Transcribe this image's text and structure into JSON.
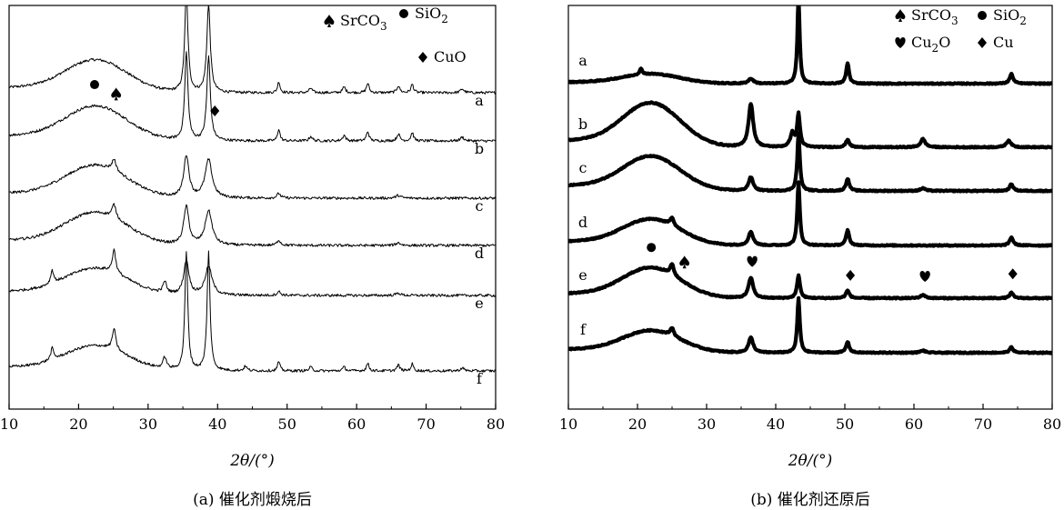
{
  "chart_data": [
    {
      "type": "line",
      "panel": "(a)",
      "caption": "(a) 催化剂煅烧后",
      "xlabel": "2θ/(°)",
      "ylabel": "",
      "xlim": [
        10,
        80
      ],
      "x_ticks": [
        "10",
        "20",
        "30",
        "40",
        "50",
        "60",
        "70",
        "80"
      ],
      "y_ticks": false,
      "grid": false,
      "legend_placement": "top-right",
      "legend": [
        {
          "marker": "spade",
          "label": "SrCO₃"
        },
        {
          "marker": "circle",
          "label": "SiO₂"
        },
        {
          "marker": "diamond",
          "label": "CuO"
        }
      ],
      "series": [
        {
          "name": "a",
          "baseline": 0.85,
          "hump": {
            "center": 22.5,
            "width": 4.5,
            "height": 0.85
          },
          "peaks": [
            [
              35.5,
              2.6,
              0.28
            ],
            [
              38.7,
              2.3,
              0.3
            ],
            [
              48.8,
              0.3,
              0.2
            ],
            [
              53.4,
              0.12,
              0.25
            ],
            [
              58.2,
              0.15,
              0.25
            ],
            [
              61.6,
              0.25,
              0.22
            ],
            [
              66.0,
              0.18,
              0.25
            ],
            [
              68.0,
              0.22,
              0.22
            ],
            [
              75.2,
              0.1,
              0.3
            ]
          ]
        },
        {
          "name": "b",
          "baseline": 0.85,
          "hump": {
            "center": 22.5,
            "width": 4.5,
            "height": 0.9
          },
          "peaks": [
            [
              35.5,
              2.3,
              0.28
            ],
            [
              38.7,
              2.2,
              0.3
            ],
            [
              48.8,
              0.32,
              0.2
            ],
            [
              53.4,
              0.12,
              0.25
            ],
            [
              58.2,
              0.15,
              0.25
            ],
            [
              61.6,
              0.25,
              0.22
            ],
            [
              66.0,
              0.18,
              0.25
            ],
            [
              68.0,
              0.22,
              0.22
            ],
            [
              75.2,
              0.1,
              0.3
            ]
          ]
        },
        {
          "name": "c",
          "baseline": 0.85,
          "hump": {
            "center": 22.5,
            "width": 4.5,
            "height": 0.85
          },
          "peaks": [
            [
              25.1,
              0.3,
              0.35
            ],
            [
              35.5,
              1.1,
              0.45
            ],
            [
              38.7,
              1.0,
              0.6
            ],
            [
              48.8,
              0.12,
              0.3
            ],
            [
              66.0,
              0.07,
              0.4
            ]
          ]
        },
        {
          "name": "d",
          "baseline": 0.85,
          "hump": {
            "center": 22.5,
            "width": 4.5,
            "height": 0.85
          },
          "peaks": [
            [
              25.1,
              0.35,
              0.35
            ],
            [
              35.5,
              1.0,
              0.45
            ],
            [
              38.7,
              0.9,
              0.6
            ],
            [
              48.8,
              0.14,
              0.3
            ],
            [
              66.0,
              0.07,
              0.4
            ]
          ]
        },
        {
          "name": "e",
          "baseline": 0.85,
          "hump": {
            "center": 22.5,
            "width": 4.5,
            "height": 0.7
          },
          "peaks": [
            [
              16.2,
              0.35,
              0.25
            ],
            [
              25.1,
              0.6,
              0.3
            ],
            [
              32.4,
              0.3,
              0.3
            ],
            [
              35.5,
              0.9,
              0.45
            ],
            [
              38.7,
              0.75,
              0.6
            ],
            [
              48.8,
              0.1,
              0.3
            ],
            [
              66.0,
              0.06,
              0.4
            ]
          ]
        },
        {
          "name": "f",
          "baseline": 0.85,
          "hump": {
            "center": 22.5,
            "width": 4.5,
            "height": 0.65
          },
          "peaks": [
            [
              16.2,
              0.3,
              0.25
            ],
            [
              25.1,
              0.55,
              0.3
            ],
            [
              32.4,
              0.3,
              0.3
            ],
            [
              35.5,
              3.1,
              0.25
            ],
            [
              38.7,
              3.1,
              0.25
            ],
            [
              44.0,
              0.12,
              0.25
            ],
            [
              48.8,
              0.25,
              0.2
            ],
            [
              53.4,
              0.1,
              0.25
            ],
            [
              58.2,
              0.1,
              0.25
            ],
            [
              61.6,
              0.2,
              0.22
            ],
            [
              66.0,
              0.15,
              0.25
            ],
            [
              68.0,
              0.18,
              0.22
            ],
            [
              75.2,
              0.08,
              0.3
            ]
          ]
        }
      ],
      "markers": [
        {
          "symbol": "circle",
          "x": 22.3,
          "curve": "b"
        },
        {
          "symbol": "spade",
          "x": 25.4,
          "curve": "b"
        },
        {
          "symbol": "diamond",
          "x": 39.6,
          "curve": "b"
        }
      ]
    },
    {
      "type": "line",
      "panel": "(b)",
      "caption": "(b) 催化剂还原后",
      "xlabel": "2θ/(°)",
      "ylabel": "",
      "xlim": [
        10,
        80
      ],
      "x_ticks": [
        "10",
        "20",
        "30",
        "40",
        "50",
        "60",
        "70",
        "80"
      ],
      "y_ticks": false,
      "grid": false,
      "legend_placement": "top-right",
      "legend": [
        {
          "marker": "spade",
          "label": "SrCO₃"
        },
        {
          "marker": "circle",
          "label": "SiO₂"
        },
        {
          "marker": "heart",
          "label": "Cu₂O"
        },
        {
          "marker": "diamond",
          "label": "Cu"
        }
      ],
      "series": [
        {
          "name": "a",
          "baseline": 0.85,
          "hump": {
            "center": 22.0,
            "width": 4.2,
            "height": 0.35
          },
          "peaks": [
            [
              20.5,
              0.2,
              0.25
            ],
            [
              36.4,
              0.18,
              0.45
            ],
            [
              43.3,
              3.2,
              0.2
            ],
            [
              50.4,
              0.75,
              0.25
            ],
            [
              74.1,
              0.35,
              0.3
            ]
          ]
        },
        {
          "name": "b",
          "baseline": 0.85,
          "hump": {
            "center": 22.0,
            "width": 4.2,
            "height": 1.6
          },
          "peaks": [
            [
              36.4,
              1.6,
              0.4
            ],
            [
              42.4,
              0.5,
              0.35
            ],
            [
              43.3,
              1.2,
              0.25
            ],
            [
              50.4,
              0.28,
              0.3
            ],
            [
              61.3,
              0.3,
              0.4
            ],
            [
              73.7,
              0.25,
              0.4
            ]
          ]
        },
        {
          "name": "c",
          "baseline": 0.85,
          "hump": {
            "center": 22.0,
            "width": 4.2,
            "height": 1.25
          },
          "peaks": [
            [
              36.4,
              0.5,
              0.4
            ],
            [
              43.3,
              2.1,
              0.22
            ],
            [
              50.4,
              0.45,
              0.28
            ],
            [
              61.3,
              0.1,
              0.4
            ],
            [
              74.1,
              0.25,
              0.3
            ]
          ]
        },
        {
          "name": "d",
          "baseline": 0.85,
          "hump": {
            "center": 22.0,
            "width": 4.2,
            "height": 0.95
          },
          "peaks": [
            [
              25.0,
              0.3,
              0.3
            ],
            [
              36.4,
              0.5,
              0.4
            ],
            [
              43.3,
              2.3,
              0.22
            ],
            [
              50.4,
              0.55,
              0.28
            ],
            [
              74.1,
              0.3,
              0.3
            ]
          ]
        },
        {
          "name": "e",
          "baseline": 0.85,
          "hump": {
            "center": 22.0,
            "width": 4.2,
            "height": 1.1
          },
          "peaks": [
            [
              25.0,
              0.4,
              0.3
            ],
            [
              36.4,
              0.75,
              0.4
            ],
            [
              43.3,
              0.85,
              0.25
            ],
            [
              50.4,
              0.28,
              0.3
            ],
            [
              61.3,
              0.12,
              0.4
            ],
            [
              74.1,
              0.2,
              0.3
            ]
          ]
        },
        {
          "name": "f",
          "baseline": 0.85,
          "hump": {
            "center": 22.0,
            "width": 4.2,
            "height": 0.8
          },
          "peaks": [
            [
              25.0,
              0.3,
              0.3
            ],
            [
              36.4,
              0.55,
              0.4
            ],
            [
              43.3,
              2.0,
              0.22
            ],
            [
              50.4,
              0.4,
              0.28
            ],
            [
              61.3,
              0.08,
              0.4
            ],
            [
              74.1,
              0.2,
              0.3
            ]
          ]
        }
      ],
      "markers": [
        {
          "symbol": "circle",
          "x": 22.0,
          "curve": "e"
        },
        {
          "symbol": "spade",
          "x": 26.8,
          "curve": "e"
        },
        {
          "symbol": "heart",
          "x": 36.6,
          "curve": "e"
        },
        {
          "symbol": "diamond",
          "x": 50.8,
          "curve": "e"
        },
        {
          "symbol": "heart",
          "x": 61.6,
          "curve": "e"
        },
        {
          "symbol": "diamond",
          "x": 74.3,
          "curve": "e"
        }
      ]
    }
  ]
}
